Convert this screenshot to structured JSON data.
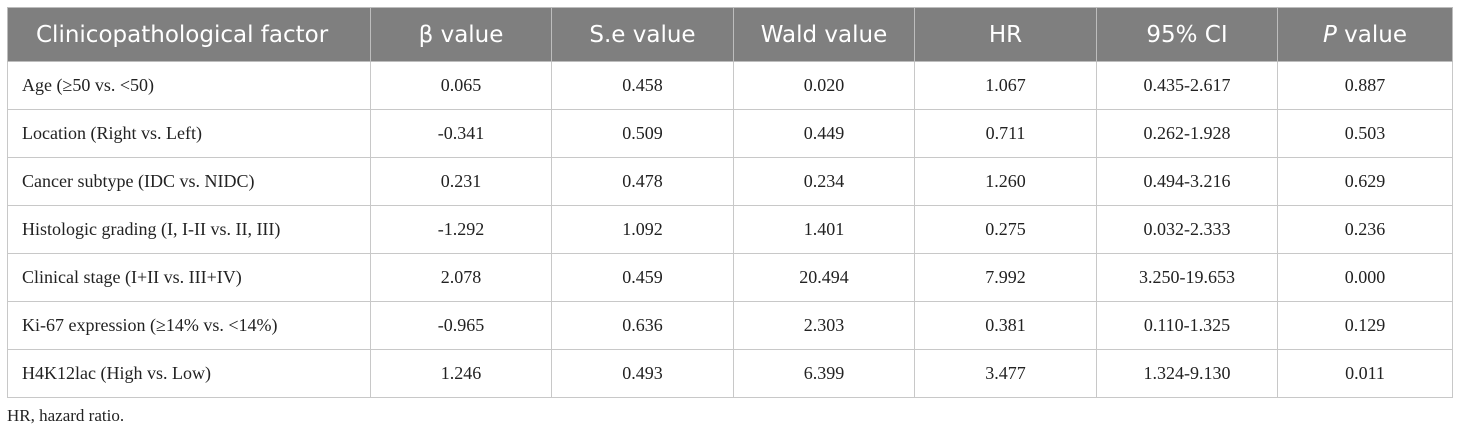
{
  "table": {
    "header": [
      "Clinicopathological factor",
      "β value",
      "S.e value",
      "Wald value",
      "HR",
      "95% CI",
      {
        "italic": "P",
        "rest": " value"
      }
    ],
    "rows": [
      [
        "Age (≥50 vs. <50)",
        "0.065",
        "0.458",
        "0.020",
        "1.067",
        "0.435-2.617",
        "0.887"
      ],
      [
        "Location (Right vs. Left)",
        "-0.341",
        "0.509",
        "0.449",
        "0.711",
        "0.262-1.928",
        "0.503"
      ],
      [
        "Cancer subtype (IDC vs. NIDC)",
        "0.231",
        "0.478",
        "0.234",
        "1.260",
        "0.494-3.216",
        "0.629"
      ],
      [
        "Histologic grading (I, I-II vs. II, III)",
        "-1.292",
        "1.092",
        "1.401",
        "0.275",
        "0.032-2.333",
        "0.236"
      ],
      [
        "Clinical stage (I+II vs. III+IV)",
        "2.078",
        "0.459",
        "20.494",
        "7.992",
        "3.250-19.653",
        "0.000"
      ],
      [
        "Ki-67 expression (≥14% vs. <14%)",
        "-0.965",
        "0.636",
        "2.303",
        "0.381",
        "0.110-1.325",
        "0.129"
      ],
      [
        "H4K12lac (High vs. Low)",
        "1.246",
        "0.493",
        "6.399",
        "3.477",
        "1.324-9.130",
        "0.011"
      ]
    ]
  },
  "footnote": "HR, hazard ratio."
}
